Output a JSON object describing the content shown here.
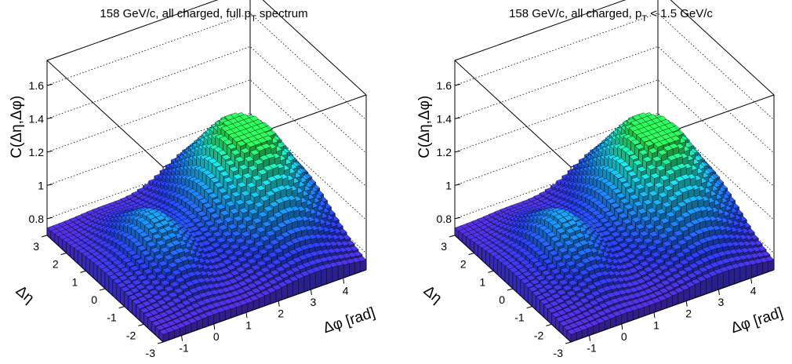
{
  "chart_data": [
    {
      "type": "surface3d",
      "title": "158 GeV/c, all charged, full p_T spectrum",
      "title_parts": [
        "158 GeV/c, all charged, full p",
        "T",
        " spectrum"
      ],
      "xlabel": "Δφ [rad]",
      "ylabel": "Δη",
      "zlabel": "C(Δη,Δφ)",
      "x_ticks": [
        "-1",
        "0",
        "1",
        "2",
        "3",
        "4"
      ],
      "y_ticks": [
        "3",
        "2",
        "1",
        "0",
        "-1",
        "-2",
        "-3"
      ],
      "z_ticks": [
        "0.8",
        "1",
        "1.2",
        "1.4",
        "1.6"
      ],
      "xlim": [
        -1.571,
        4.712
      ],
      "ylim": [
        -3,
        3
      ],
      "zlim": [
        0.7,
        1.75
      ],
      "z_range_observed": [
        0.72,
        1.27
      ],
      "near_side_peak": {
        "dphi": 0,
        "deta": 0,
        "value": 0.95
      },
      "away_side_peak": {
        "dphi": 3.14,
        "deta": 0,
        "value": 1.27
      },
      "colormap": [
        "#5b2bd6",
        "#2a3ff0",
        "#1a8ef5",
        "#19e0e6",
        "#2cf35a"
      ]
    },
    {
      "type": "surface3d",
      "title": "158 GeV/c, all charged, p_T < 1.5 GeV/c",
      "title_parts": [
        "158 GeV/c, all charged, p",
        "T",
        " < 1.5 GeV/c"
      ],
      "xlabel": "Δφ [rad]",
      "ylabel": "Δη",
      "zlabel": "C(Δη,Δφ)",
      "x_ticks": [
        "-1",
        "0",
        "1",
        "2",
        "3",
        "4"
      ],
      "y_ticks": [
        "3",
        "2",
        "1",
        "0",
        "-1",
        "-2",
        "-3"
      ],
      "z_ticks": [
        "0.8",
        "1",
        "1.2",
        "1.4",
        "1.6"
      ],
      "xlim": [
        -1.571,
        4.712
      ],
      "ylim": [
        -3,
        3
      ],
      "zlim": [
        0.7,
        1.75
      ],
      "z_range_observed": [
        0.72,
        1.27
      ],
      "near_side_peak": {
        "dphi": 0,
        "deta": 0,
        "value": 0.95
      },
      "away_side_peak": {
        "dphi": 3.14,
        "deta": 0,
        "value": 1.27
      },
      "colormap": [
        "#5b2bd6",
        "#2a3ff0",
        "#1a8ef5",
        "#19e0e6",
        "#2cf35a"
      ]
    }
  ]
}
